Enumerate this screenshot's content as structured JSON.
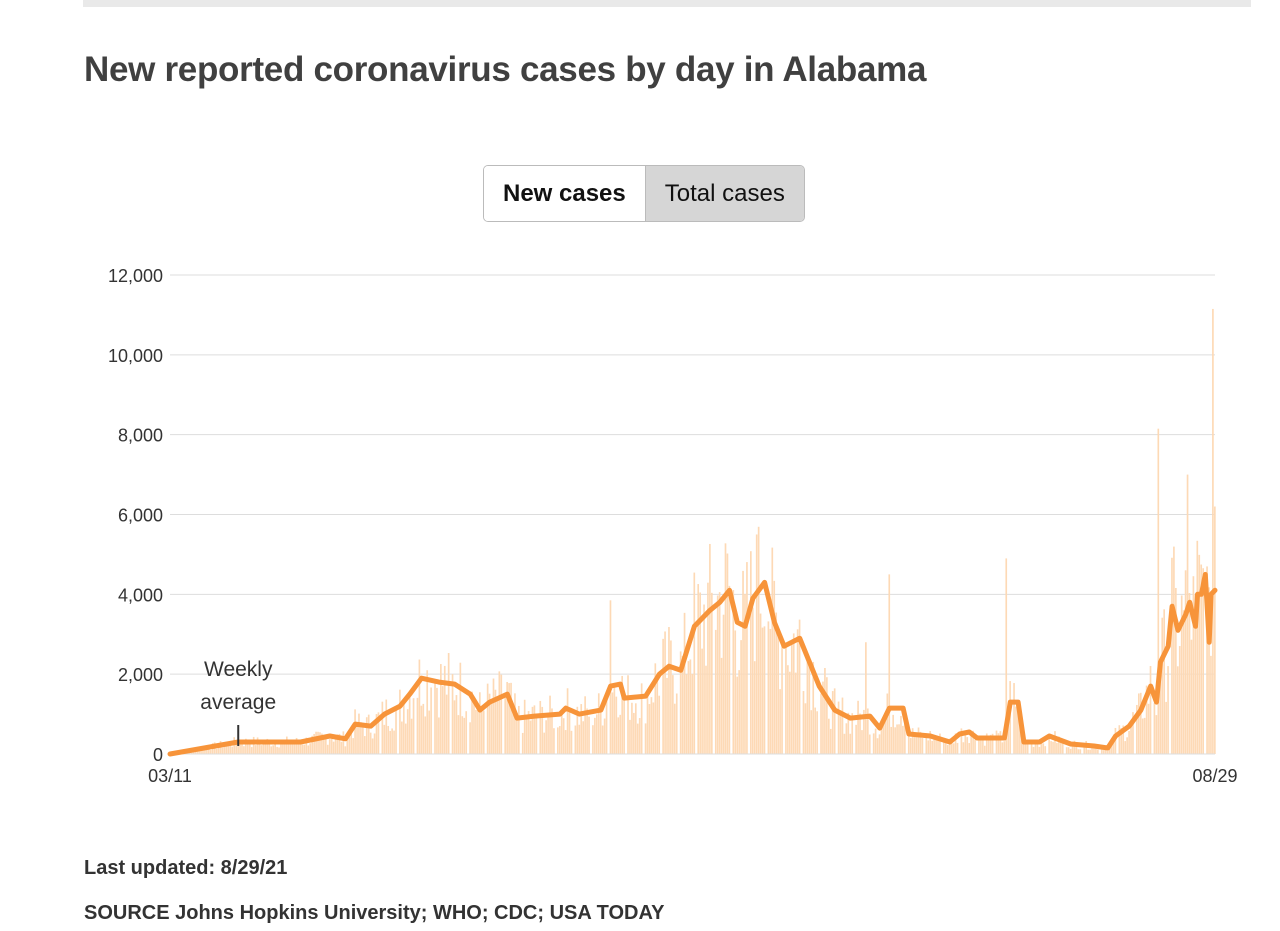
{
  "title": "New reported coronavirus cases by day in Alabama",
  "toggle": {
    "new": "New cases",
    "total": "Total cases"
  },
  "footer": {
    "updated": "Last updated: 8/29/21",
    "source": "SOURCE Johns Hopkins University; WHO; CDC; USA TODAY"
  },
  "colors": {
    "line": "#f7943a",
    "bars": "#fdd9b5",
    "grid": "#dddddd"
  },
  "chart_data": {
    "type": "bar",
    "title": "New reported coronavirus cases by day in Alabama",
    "xlabel": "",
    "ylabel": "",
    "x_start": "03/11",
    "x_end": "08/29",
    "total_days": 536,
    "ylim": [
      0,
      12000
    ],
    "yticks": [
      "0",
      "2,000",
      "4,000",
      "6,000",
      "8,000",
      "10,000",
      "12,000"
    ],
    "ytick_values": [
      0,
      2000,
      4000,
      6000,
      8000,
      10000,
      12000
    ],
    "xtick_labels": [
      "03/11",
      "08/29"
    ],
    "annotation": {
      "text_line1": "Weekly",
      "text_line2": "average",
      "day": 35
    },
    "weekly_average": [
      [
        0,
        0
      ],
      [
        35,
        300
      ],
      [
        67,
        300
      ],
      [
        82,
        450
      ],
      [
        90,
        380
      ],
      [
        95,
        750
      ],
      [
        103,
        700
      ],
      [
        110,
        1000
      ],
      [
        118,
        1200
      ],
      [
        123,
        1500
      ],
      [
        129,
        1900
      ],
      [
        138,
        1800
      ],
      [
        146,
        1750
      ],
      [
        154,
        1500
      ],
      [
        159,
        1100
      ],
      [
        164,
        1300
      ],
      [
        173,
        1500
      ],
      [
        178,
        900
      ],
      [
        187,
        950
      ],
      [
        200,
        1000
      ],
      [
        203,
        1150
      ],
      [
        210,
        1000
      ],
      [
        221,
        1100
      ],
      [
        226,
        1700
      ],
      [
        231,
        1750
      ],
      [
        233,
        1400
      ],
      [
        244,
        1450
      ],
      [
        251,
        2000
      ],
      [
        256,
        2200
      ],
      [
        262,
        2100
      ],
      [
        269,
        3200
      ],
      [
        277,
        3600
      ],
      [
        282,
        3800
      ],
      [
        287,
        4100
      ],
      [
        291,
        3300
      ],
      [
        295,
        3200
      ],
      [
        299,
        3900
      ],
      [
        305,
        4300
      ],
      [
        310,
        3300
      ],
      [
        315,
        2700
      ],
      [
        323,
        2900
      ],
      [
        328,
        2300
      ],
      [
        333,
        1700
      ],
      [
        341,
        1100
      ],
      [
        349,
        900
      ],
      [
        359,
        950
      ],
      [
        364,
        650
      ],
      [
        369,
        1150
      ],
      [
        376,
        1150
      ],
      [
        379,
        500
      ],
      [
        390,
        450
      ],
      [
        400,
        300
      ],
      [
        405,
        500
      ],
      [
        410,
        550
      ],
      [
        414,
        400
      ],
      [
        428,
        400
      ],
      [
        431,
        1300
      ],
      [
        435,
        1300
      ],
      [
        438,
        300
      ],
      [
        446,
        300
      ],
      [
        451,
        450
      ],
      [
        462,
        250
      ],
      [
        474,
        200
      ],
      [
        481,
        150
      ],
      [
        485,
        450
      ],
      [
        492,
        700
      ],
      [
        498,
        1100
      ],
      [
        503,
        1700
      ],
      [
        506,
        1300
      ],
      [
        508,
        2300
      ],
      [
        512,
        2700
      ],
      [
        514,
        3700
      ],
      [
        517,
        3100
      ],
      [
        521,
        3500
      ],
      [
        523,
        3800
      ],
      [
        526,
        3200
      ],
      [
        527,
        4000
      ],
      [
        529,
        4000
      ],
      [
        531,
        4500
      ],
      [
        533,
        2800
      ],
      [
        534,
        4000
      ],
      [
        536,
        4100
      ]
    ],
    "daily_spikes": [
      [
        226,
        3850
      ],
      [
        301,
        5500
      ],
      [
        357,
        2800
      ],
      [
        369,
        4500
      ],
      [
        429,
        4900
      ],
      [
        507,
        8150
      ],
      [
        522,
        7000
      ],
      [
        535,
        11150
      ],
      [
        536,
        6200
      ]
    ]
  }
}
